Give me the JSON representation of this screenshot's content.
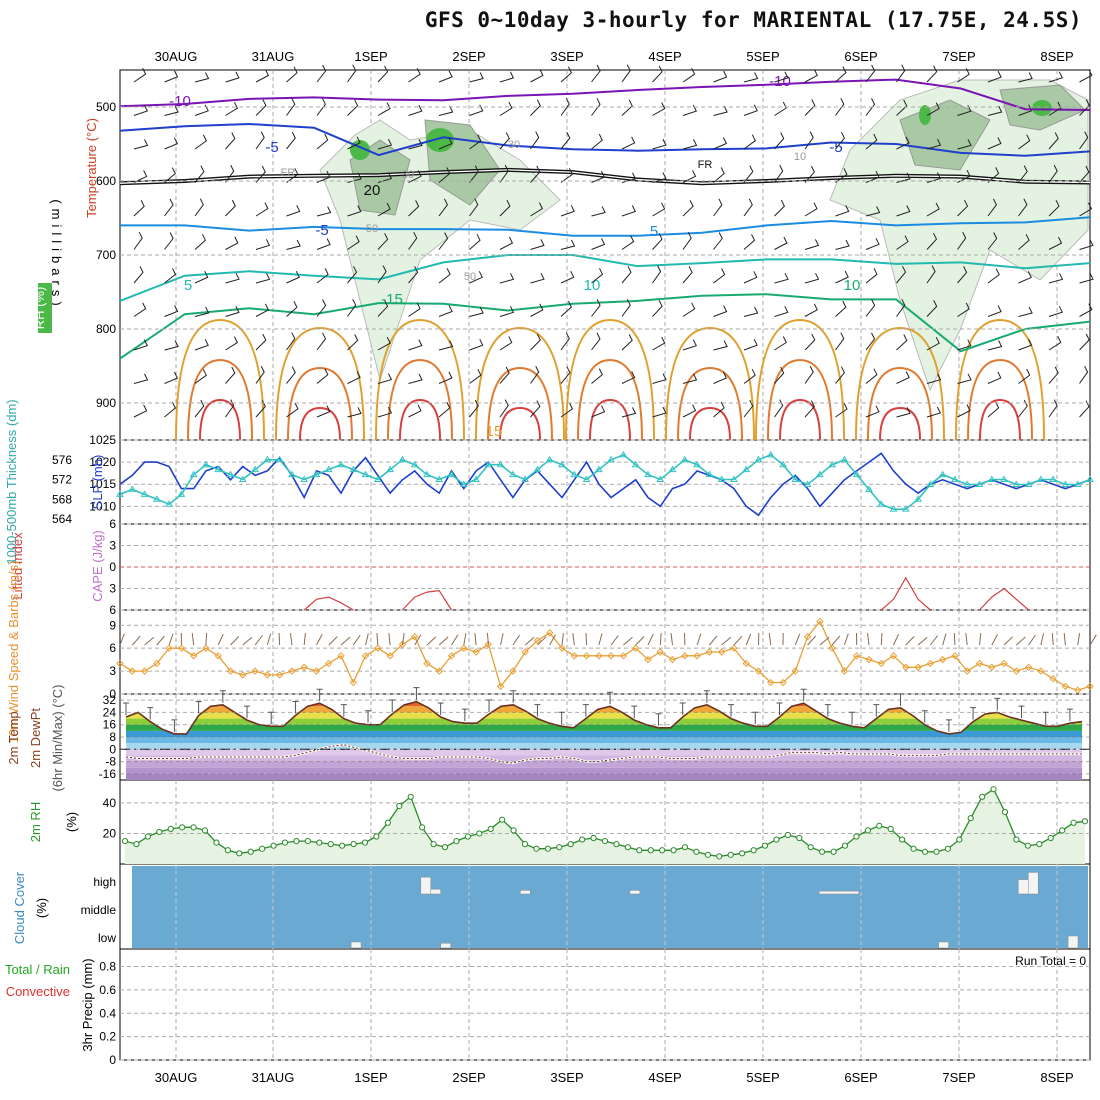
{
  "title": "GFS 0~10day 3-hourly for MARIENTAL (17.75E, 24.5S)",
  "colors": {
    "wind_barb": "#222222",
    "rh_light": "#e3f2e1",
    "rh_mid": "#a9c9a4",
    "rh_green": "#4cb848",
    "slp": "#1f3fcc",
    "thickness": "#33c2c2",
    "lifted_index": "#d04040",
    "wind10m": "#e8a035",
    "temp_line": "#6a3020",
    "rh2m": "#2a8a2a",
    "cloud_bg": "#6aaad2",
    "cloud_cell": "#f4f4f4",
    "grid": "#aaaaaa"
  },
  "chart_data": {
    "type": "line",
    "dates": [
      "30AUG",
      "31AUG",
      "1SEP",
      "2SEP",
      "3SEP",
      "4SEP",
      "5SEP",
      "6SEP",
      "7SEP",
      "8SEP"
    ],
    "run_total_label": "Run Total = 0",
    "panels": [
      {
        "id": "upper-air",
        "ylabel": "(millibars)",
        "left_labels": [
          "Wind (m/s)",
          "Temperature (°C)",
          "RH (%)"
        ],
        "yticks": [
          500,
          600,
          700,
          800,
          900
        ],
        "ylim": [
          450,
          950
        ],
        "contour_labels": [
          "-10",
          "-10",
          "-5",
          "-5",
          "-5",
          "5",
          "5",
          "10",
          "10",
          "-15",
          "15",
          "20",
          "FR",
          "FR",
          "30",
          "50",
          "50",
          "30",
          "10"
        ],
        "contours": [
          {
            "label": "-10",
            "color": "#7a14b4",
            "pressure": [
              499,
              496,
              489,
              487,
              490,
              491,
              485,
              482,
              477,
              473,
              470,
              466,
              463,
              475,
              503,
              504
            ]
          },
          {
            "label": "-5",
            "color": "#1f3fcc",
            "pressure": [
              532,
              526,
              523,
              528,
              565,
              541,
              552,
              557,
              559,
              557,
              556,
              548,
              550,
              562,
              566,
              560
            ]
          },
          {
            "label": "FR",
            "color": "#111111",
            "pressure": [
              603,
              600,
              594,
              593,
              592,
              588,
              585,
              588,
              598,
              603,
              600,
              596,
              593,
              594,
              601,
              602
            ]
          },
          {
            "label": "5",
            "color": "#1c8ce0",
            "pressure": [
              660,
              660,
              667,
              662,
              665,
              665,
              666,
              674,
              674,
              670,
              660,
              654,
              660,
              657,
              656,
              649
            ]
          },
          {
            "label": "10",
            "color": "#22bab0",
            "pressure": [
              762,
              728,
              722,
              728,
              733,
              710,
              700,
              700,
              715,
              711,
              706,
              706,
              712,
              710,
              718,
              711
            ]
          },
          {
            "label": "15",
            "color": "#18aa70",
            "pressure": [
              840,
              780,
              772,
              780,
              765,
              766,
              775,
              766,
              762,
              755,
              753,
              760,
              760,
              830,
              800,
              790
            ]
          }
        ]
      },
      {
        "id": "slp-thickness",
        "left_labels": [
          "1000-500mb Thickness (dm)",
          "SLP (mb)"
        ],
        "left_ticks": [
          564,
          568,
          572,
          576
        ],
        "right_ticks": [
          1010,
          1015,
          1020,
          1025
        ],
        "series": [
          {
            "name": "SLP (mb)",
            "color": "#1f3fcc",
            "ylim": [
              1006,
              1025
            ],
            "values": [
              1015,
              1017,
              1020,
              1020,
              1019,
              1014,
              1014,
              1018,
              1019,
              1016,
              1019,
              1017,
              1018,
              1021,
              1017,
              1012,
              1018,
              1017,
              1013,
              1018,
              1021,
              1017,
              1013,
              1016,
              1018,
              1015,
              1013,
              1018,
              1014,
              1018,
              1020,
              1016,
              1012,
              1016,
              1018,
              1015,
              1012,
              1016,
              1020,
              1015,
              1012,
              1014,
              1016,
              1012,
              1010,
              1014,
              1015,
              1018,
              1017,
              1016,
              1014,
              1010,
              1008,
              1012,
              1015,
              1017,
              1014,
              1010,
              1013,
              1016,
              1018,
              1020,
              1022,
              1018,
              1015,
              1013,
              1015,
              1016,
              1015,
              1014,
              1015,
              1016,
              1015,
              1014,
              1015,
              1016,
              1015,
              1014,
              1015,
              1016
            ]
          },
          {
            "name": "1000-500mb Thickness (dm)",
            "color": "#33c2c2",
            "ylim": [
              563,
              580
            ],
            "values": [
              569,
              570,
              569,
              568,
              567,
              569,
              573,
              575,
              574,
              573,
              572,
              574,
              576,
              576,
              573,
              572,
              573,
              574,
              575,
              574,
              573,
              572,
              574,
              576,
              575,
              573,
              572,
              573,
              571,
              572,
              575,
              575,
              573,
              572,
              574,
              576,
              575,
              573,
              572,
              574,
              576,
              577,
              575,
              573,
              572,
              574,
              576,
              575,
              573,
              572,
              572,
              574,
              576,
              577,
              575,
              572,
              571,
              573,
              575,
              576,
              573,
              570,
              567,
              566,
              566,
              568,
              571,
              573,
              572,
              571,
              571,
              572,
              572,
              571,
              571,
              572,
              572,
              571,
              571,
              572
            ]
          }
        ]
      },
      {
        "id": "li-cape",
        "left_labels": [
          "Lifted Index",
          "CAPE (J/kg)"
        ],
        "yticks": [
          -6,
          -3,
          0,
          3,
          6
        ],
        "ylim": [
          -6,
          6
        ],
        "series": [
          {
            "name": "Lifted Index",
            "color": "#d04040",
            "segments": [
              {
                "start": 15,
                "values": [
                  6,
                  4.5,
                  4.2,
                  5,
                  6
                ]
              },
              {
                "start": 23,
                "values": [
                  6,
                  4.2,
                  3.5,
                  3.3,
                  6
                ]
              },
              {
                "start": 62,
                "values": [
                  6,
                  4.5,
                  1.5,
                  4.5,
                  6
                ]
              },
              {
                "start": 70,
                "values": [
                  6,
                  4.2,
                  3.0,
                  4.5,
                  6
                ]
              }
            ]
          }
        ]
      },
      {
        "id": "wind10m",
        "left_labels": [
          "10m Wind Speed & Barbs (m/s)"
        ],
        "yticks": [
          0,
          3,
          6,
          9
        ],
        "ylim": [
          0,
          11
        ],
        "series": [
          {
            "name": "10m Wind Speed",
            "color": "#e8a035",
            "values": [
              4,
              3,
              3,
              4,
              6,
              6,
              5,
              6,
              5,
              3,
              2.5,
              3,
              2.5,
              2.5,
              3,
              3.5,
              3,
              4,
              5,
              1.5,
              5,
              6,
              5,
              6.5,
              7.5,
              4,
              3,
              5,
              6,
              5.5,
              6.5,
              1,
              3,
              5.5,
              7,
              8,
              6,
              5,
              5,
              5,
              5,
              5,
              6,
              4.5,
              5.5,
              4.5,
              5,
              5,
              5.5,
              5.5,
              6,
              4,
              3,
              1.5,
              1.5,
              3,
              7.5,
              9.5,
              6,
              3,
              5,
              4.5,
              4,
              5,
              3.5,
              3.5,
              4,
              4.5,
              5,
              3,
              4,
              3.5,
              4,
              3,
              3.5,
              3,
              2,
              1,
              0.5,
              1
            ]
          }
        ]
      },
      {
        "id": "temp-dewpt",
        "left_labels": [
          "2m Temp",
          "2m DewPt",
          "(6hr Min/Max) (°C)"
        ],
        "yticks": [
          -16,
          -8,
          0,
          8,
          16,
          24,
          32
        ],
        "ylim": [
          -20,
          36
        ],
        "bands": [
          {
            "from": -20,
            "to": -16,
            "color": "#a686c2"
          },
          {
            "from": -16,
            "to": -12,
            "color": "#b494cc"
          },
          {
            "from": -12,
            "to": -8,
            "color": "#c2a4d6"
          },
          {
            "from": -8,
            "to": -4,
            "color": "#d0b6e0"
          },
          {
            "from": -4,
            "to": 0,
            "color": "#dfc8ea"
          },
          {
            "from": 0,
            "to": 4,
            "color": "#a8d8f0"
          },
          {
            "from": 4,
            "to": 8,
            "color": "#6cb8e6"
          },
          {
            "from": 8,
            "to": 12,
            "color": "#3a9ad6"
          },
          {
            "from": 12,
            "to": 16,
            "color": "#2aa84a"
          },
          {
            "from": 16,
            "to": 20,
            "color": "#8ccf3a"
          },
          {
            "from": 20,
            "to": 24,
            "color": "#e8e04a"
          },
          {
            "from": 24,
            "to": 28,
            "color": "#f0a83a"
          },
          {
            "from": 28,
            "to": 32,
            "color": "#e0662a"
          },
          {
            "from": 32,
            "to": 36,
            "color": "#b8341e"
          }
        ],
        "series": [
          {
            "name": "2m Temp",
            "color": "#6a3020",
            "values": [
              21,
              24,
              18,
              13,
              10,
              10,
              22,
              28,
              29,
              24,
              19,
              16,
              15,
              15,
              22,
              28,
              30,
              26,
              20,
              17,
              16,
              16,
              23,
              29,
              31,
              27,
              21,
              18,
              17,
              17,
              23,
              28,
              29,
              25,
              20,
              17,
              15,
              14,
              20,
              26,
              28,
              24,
              19,
              16,
              14,
              14,
              21,
              27,
              29,
              25,
              20,
              17,
              15,
              15,
              21,
              28,
              30,
              25,
              20,
              17,
              15,
              14,
              20,
              26,
              27,
              22,
              16,
              12,
              10,
              11,
              18,
              23,
              24,
              21,
              19,
              17,
              15,
              15,
              17,
              18
            ]
          },
          {
            "name": "2m DewPt",
            "color": "#6a3020",
            "values": [
              -5,
              -6,
              -6,
              -6,
              -6,
              -6,
              -5,
              -5,
              -5,
              -5,
              -5,
              -5,
              -5,
              -5,
              -4,
              -2,
              0,
              2,
              3,
              1,
              -1,
              -3,
              -5,
              -6,
              -6,
              -6,
              -5,
              -5,
              -5,
              -5,
              -6,
              -8,
              -9,
              -7,
              -6,
              -6,
              -5,
              -6,
              -8,
              -8,
              -7,
              -6,
              -5,
              -5,
              -5,
              -6,
              -6,
              -6,
              -5,
              -5,
              -5,
              -5,
              -5,
              -5,
              -4,
              -2,
              -2,
              -2,
              -3,
              -2,
              -3,
              -3,
              -3,
              -3,
              -4,
              -4,
              -4,
              -4,
              -3,
              -3,
              -3,
              -3,
              -3,
              -3,
              -3,
              -3,
              -3,
              -3,
              -3,
              -3
            ]
          }
        ]
      },
      {
        "id": "rh2m",
        "left_labels": [
          "2m RH",
          "(%)"
        ],
        "yticks": [
          20,
          40
        ],
        "ylim": [
          0,
          55
        ],
        "series": [
          {
            "name": "2m RH",
            "color": "#2a8a2a",
            "values": [
              15,
              13,
              18,
              21,
              23,
              24,
              24,
              22,
              14,
              9,
              7,
              8,
              10,
              12,
              14,
              15,
              15,
              14,
              13,
              12,
              13,
              14,
              18,
              27,
              38,
              44,
              24,
              13,
              11,
              15,
              18,
              20,
              23,
              29,
              22,
              13,
              10,
              10,
              11,
              13,
              16,
              17,
              15,
              13,
              11,
              9,
              9,
              9,
              9,
              11,
              8,
              6,
              5,
              6,
              7,
              9,
              12,
              16,
              19,
              17,
              11,
              8,
              8,
              12,
              18,
              22,
              25,
              23,
              16,
              10,
              8,
              8,
              10,
              16,
              30,
              44,
              49,
              34,
              16,
              12,
              13,
              17,
              22,
              27,
              28
            ]
          }
        ]
      },
      {
        "id": "cloud-cover",
        "left_labels": [
          "Cloud Cover",
          "(%)"
        ],
        "ylabels": [
          "high",
          "middle",
          "low"
        ],
        "cells": [
          {
            "layer": "high",
            "start": 29,
            "len": 1,
            "frac": 0.7
          },
          {
            "layer": "high",
            "start": 30,
            "len": 1,
            "frac": 0.2
          },
          {
            "layer": "high",
            "start": 39,
            "len": 1,
            "frac": 0.15
          },
          {
            "layer": "high",
            "start": 50,
            "len": 1,
            "frac": 0.15
          },
          {
            "layer": "high",
            "start": 69,
            "len": 4,
            "frac": 0.12
          },
          {
            "layer": "high",
            "start": 89,
            "len": 1,
            "frac": 0.6
          },
          {
            "layer": "high",
            "start": 90,
            "len": 1,
            "frac": 0.9
          },
          {
            "layer": "low",
            "start": 22,
            "len": 1,
            "frac": 0.25
          },
          {
            "layer": "low",
            "start": 31,
            "len": 1,
            "frac": 0.2
          },
          {
            "layer": "low",
            "start": 81,
            "len": 1,
            "frac": 0.25
          },
          {
            "layer": "low",
            "start": 94,
            "len": 1,
            "frac": 0.5
          }
        ]
      },
      {
        "id": "precip",
        "left_labels": [
          "Total / Rain",
          "Convective",
          "3hr Precip (mm)"
        ],
        "yticks": [
          0,
          0.2,
          0.4,
          0.6,
          0.8
        ],
        "ylim": [
          0,
          0.95
        ],
        "series": []
      }
    ]
  }
}
